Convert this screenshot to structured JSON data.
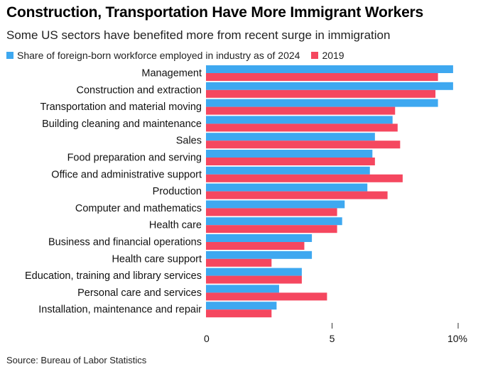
{
  "chart_data": {
    "type": "bar",
    "orientation": "horizontal",
    "title": "Construction, Transportation Have More Immigrant Workers",
    "subtitle": "Some US sectors have benefited more from recent surge in immigration",
    "categories": [
      "Management",
      "Construction and extraction",
      "Transportation and material moving",
      "Building cleaning and maintenance",
      "Sales",
      "Food preparation and serving",
      "Office and administrative support",
      "Production",
      "Computer and mathematics",
      "Health care",
      "Business and financial operations",
      "Health care support",
      "Education, training and library services",
      "Personal care and services",
      "Installation, maintenance and repair"
    ],
    "series": [
      {
        "name": "Share of foreign-born workforce employed in industry as of 2024",
        "color": "#3ea8f0",
        "values": [
          9.8,
          9.8,
          9.2,
          7.4,
          6.7,
          6.6,
          6.5,
          6.4,
          5.5,
          5.4,
          4.2,
          4.2,
          3.8,
          2.9,
          2.8
        ]
      },
      {
        "name": "2019",
        "color": "#f5475f",
        "values": [
          9.2,
          9.1,
          7.5,
          7.6,
          7.7,
          6.7,
          7.8,
          7.2,
          5.2,
          5.2,
          3.9,
          2.6,
          3.8,
          4.8,
          2.6
        ]
      }
    ],
    "xlim": [
      0,
      10
    ],
    "xticks": [
      0,
      5,
      10
    ],
    "xtick_labels": [
      "0",
      "5",
      "10%"
    ],
    "xlabel": "",
    "ylabel": "",
    "grid": false,
    "legend_position": "top-left",
    "source": "Source: Bureau of Labor Statistics"
  }
}
